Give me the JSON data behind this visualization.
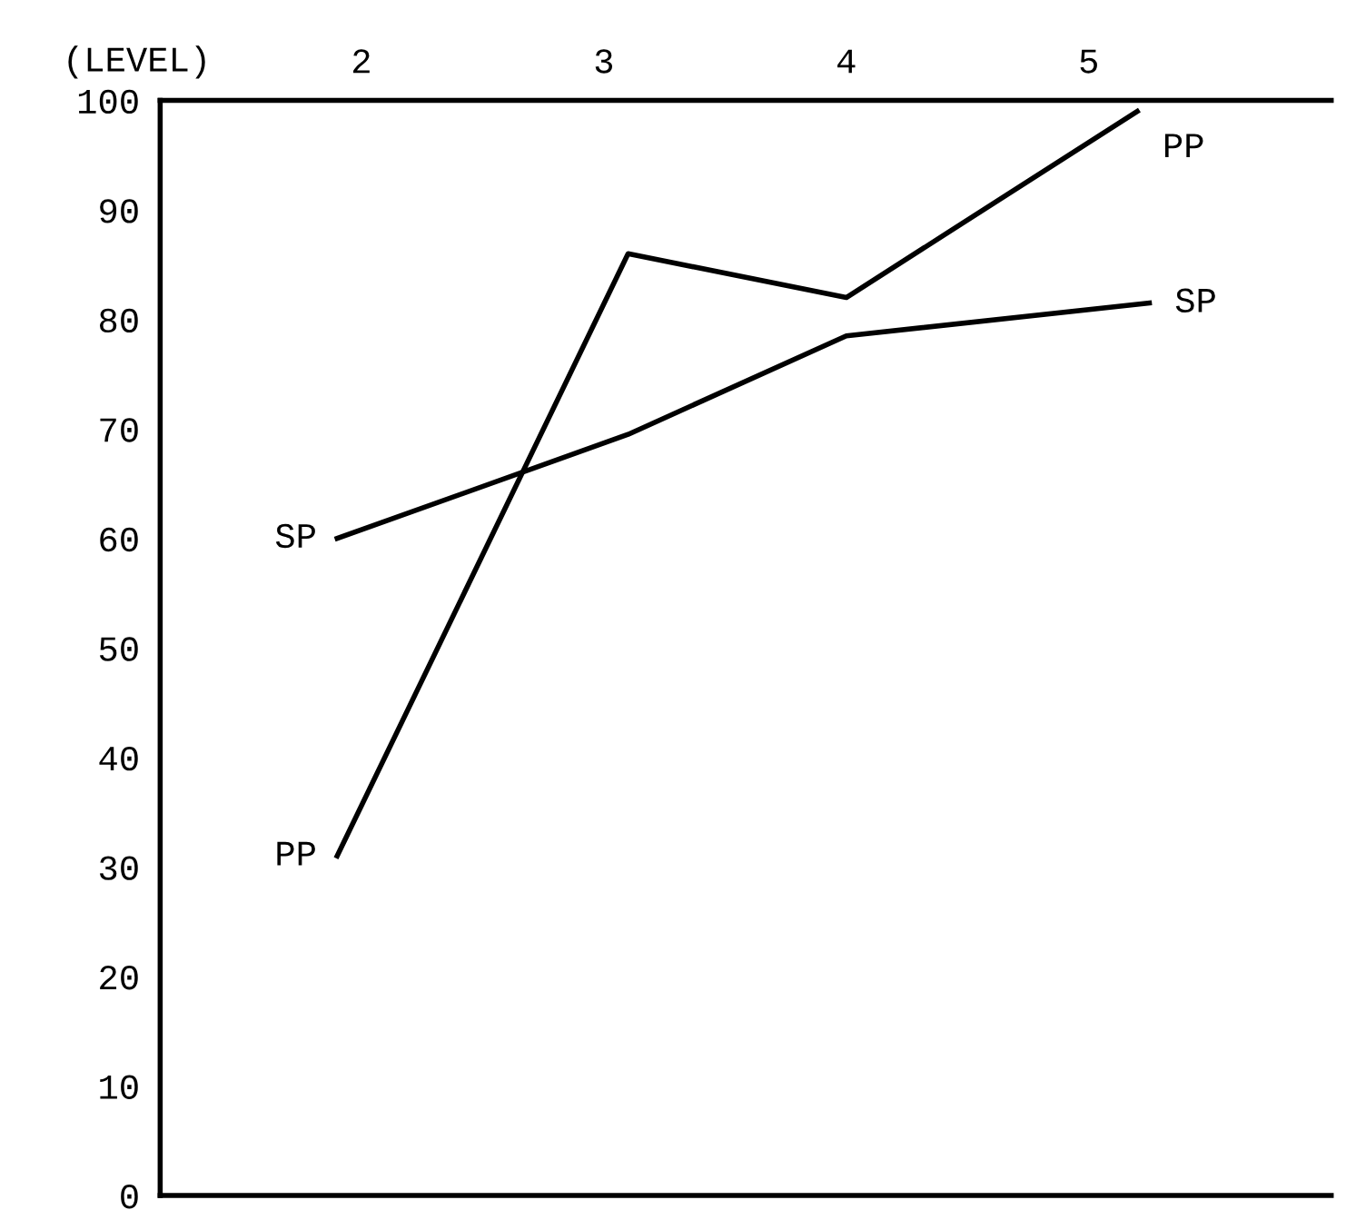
{
  "chart_data": {
    "type": "line",
    "xlabel": "(LEVEL)",
    "xlim": [
      1.17,
      6.0
    ],
    "xticks": [
      2,
      3,
      4,
      5
    ],
    "ylim": [
      0,
      100
    ],
    "yticks": [
      0,
      10,
      20,
      30,
      40,
      50,
      60,
      70,
      80,
      90,
      100
    ],
    "series": [
      {
        "name": "PP",
        "color": "#000000",
        "x": [
          1.9,
          3.1,
          4.0,
          5.2
        ],
        "values": [
          31,
          86,
          82,
          99
        ]
      },
      {
        "name": "SP",
        "color": "#000000",
        "x": [
          1.9,
          3.1,
          4.0,
          5.25
        ],
        "values": [
          60,
          69.5,
          78.5,
          81.5
        ]
      }
    ],
    "grid": false,
    "legend": false,
    "marker": "none",
    "line_style": "solid"
  }
}
